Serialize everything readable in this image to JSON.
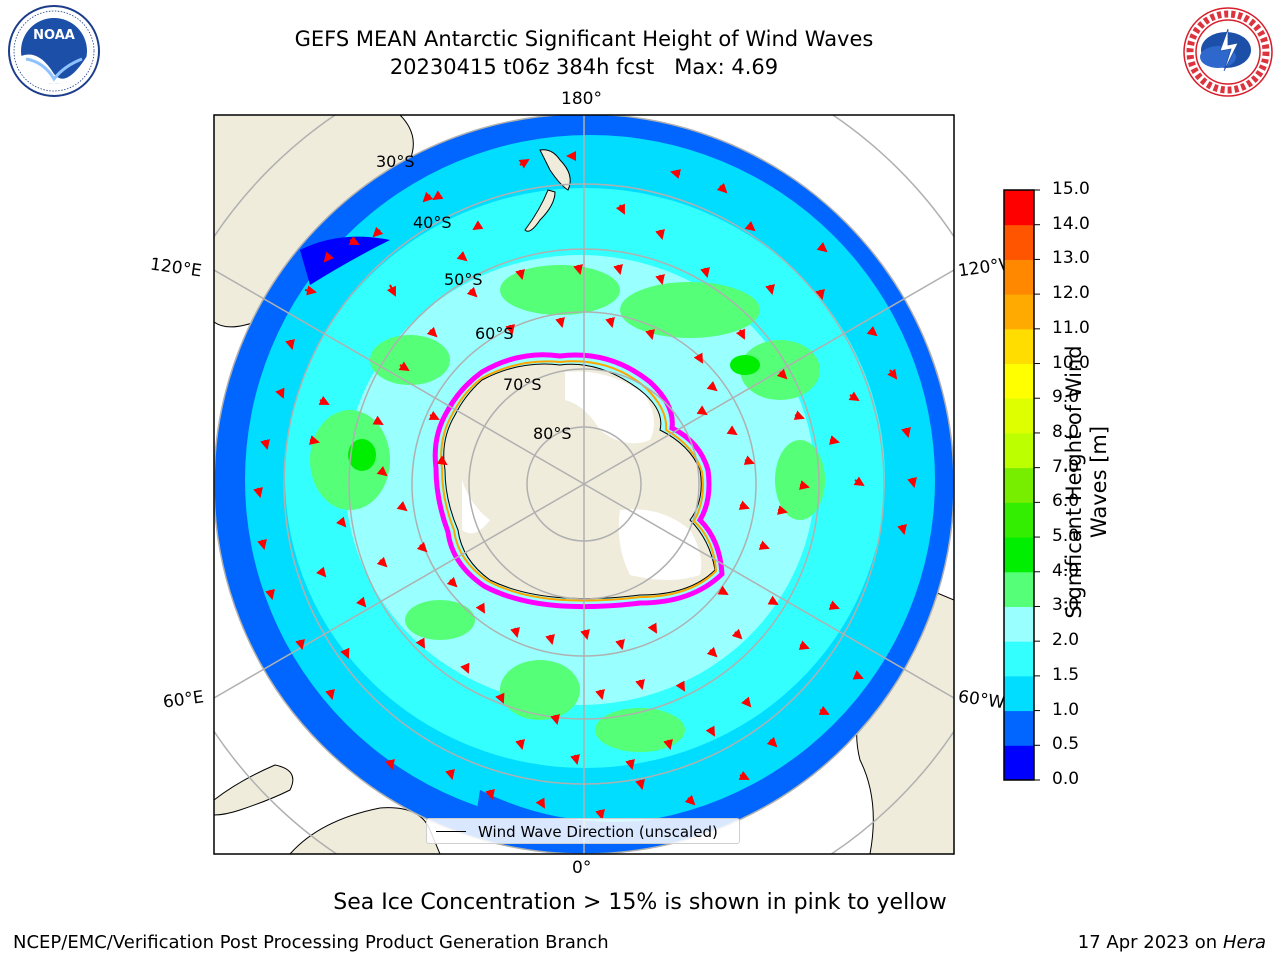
{
  "header": {
    "title_line1": "GEFS MEAN Antarctic Significant Height of Wind Waves",
    "title_line2": "20230415 t06z 384h fcst   Max: 4.69"
  },
  "logos": {
    "noaa": {
      "icon": "noaa-logo-icon",
      "label": "NOAA",
      "ring_text": "NATIONAL OCEANIC AND ATMOSPHERIC ADMINISTRATION · U.S. DEPARTMENT OF COMMERCE"
    },
    "nws": {
      "icon": "nws-logo-icon",
      "ring_text": "NATIONAL WEATHER SERVICE"
    }
  },
  "map": {
    "projection": "south-polar-stereographic",
    "longitude_labels": {
      "top": "180°",
      "bottom": "0°",
      "upper_left": "120°E",
      "upper_right": "120°W",
      "lower_left": "60°E",
      "lower_right": "60°W"
    },
    "latitude_labels": [
      "30°S",
      "40°S",
      "50°S",
      "60°S",
      "70°S",
      "80°S"
    ],
    "legend_label": "Wind Wave Direction (unscaled)",
    "arrow_color": "#ff0000",
    "land_color": "#efecdc",
    "ice_edge_colors": [
      "#ff00ff",
      "#ffa500",
      "#ffff00"
    ]
  },
  "colorbar": {
    "title": "Significant Height of Wind Waves [m]",
    "tick_labels": [
      "0.0",
      "0.5",
      "1.0",
      "1.5",
      "2.0",
      "3.0",
      "4.0",
      "5.0",
      "6.0",
      "7.0",
      "8.0",
      "9.0",
      "10.0",
      "11.0",
      "12.0",
      "13.0",
      "14.0",
      "15.0"
    ],
    "colors": [
      "#0000ff",
      "#0066ff",
      "#00ddff",
      "#33ffff",
      "#99ffff",
      "#55ff77",
      "#00ee00",
      "#33ee00",
      "#77ee00",
      "#bbff00",
      "#ddff00",
      "#ffff00",
      "#ffdd00",
      "#ffaa00",
      "#ff8800",
      "#ff5500",
      "#ff0000"
    ]
  },
  "footer": {
    "note": "Sea Ice Concentration > 15% is shown in pink to yellow",
    "left": "NCEP/EMC/Verification Post Processing Product Generation Branch",
    "date": "17 Apr 2023 on ",
    "machine": "Hera"
  }
}
